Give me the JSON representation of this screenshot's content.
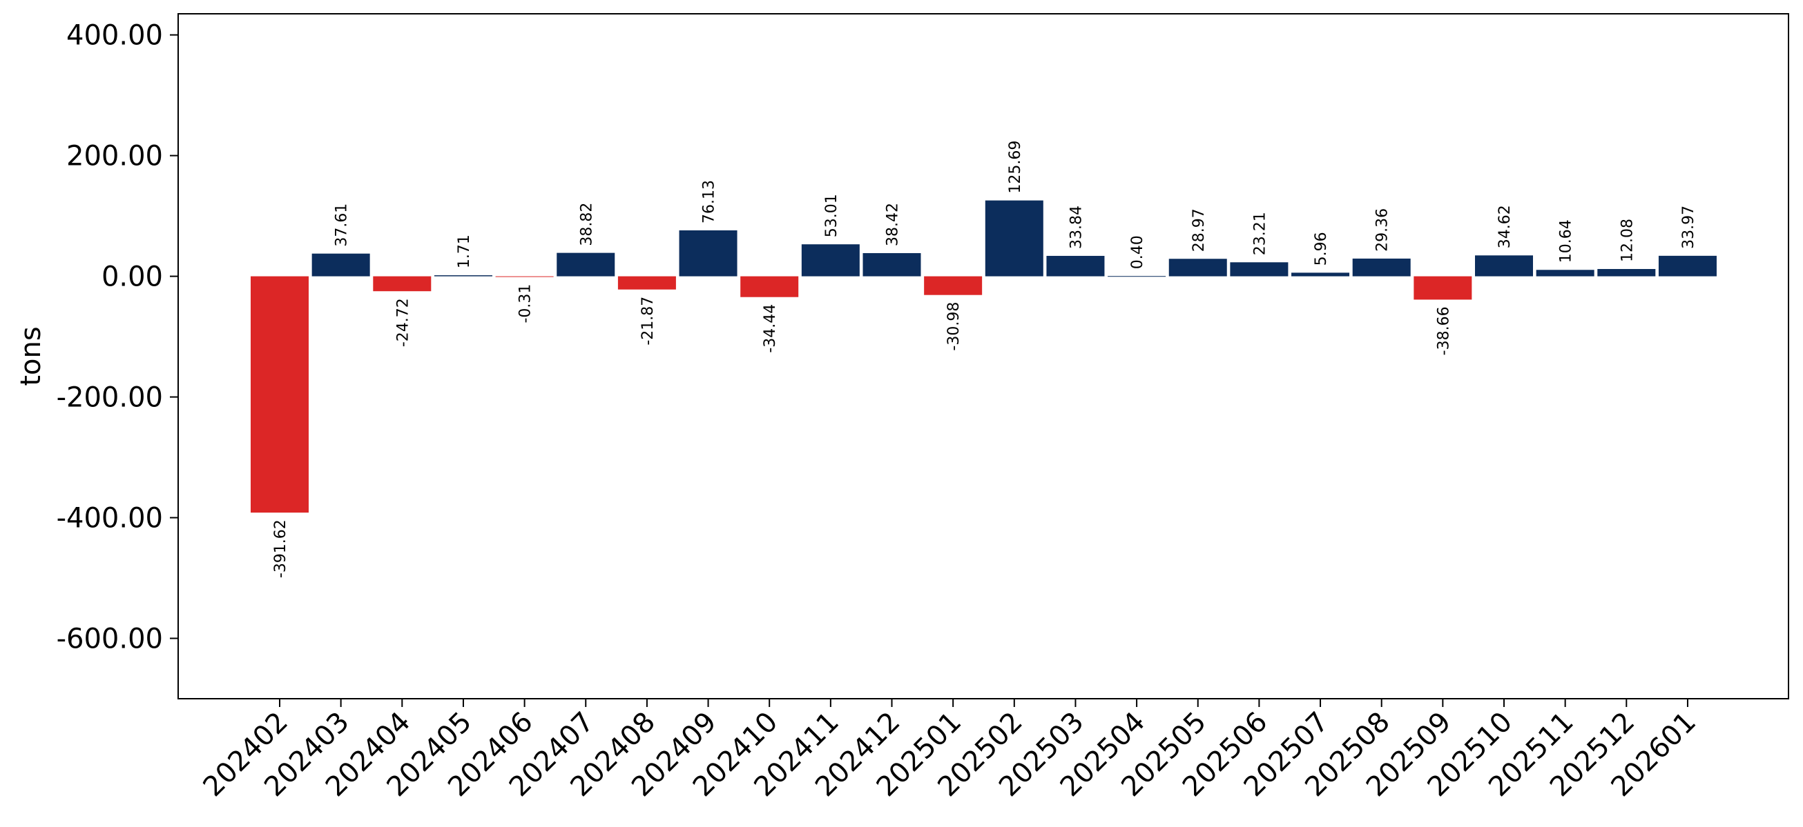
{
  "chart_data": {
    "type": "bar",
    "title": "",
    "xlabel": "",
    "ylabel": "tons",
    "ylim": [
      -700,
      435
    ],
    "yticks": [
      -600,
      -400,
      -200,
      0,
      200,
      400
    ],
    "ytick_labels": [
      "-600.00",
      "-400.00",
      "-200.00",
      "0.00",
      "200.00",
      "400.00"
    ],
    "grid": false,
    "legend": "none",
    "colors": {
      "positive": "#0c2d5c",
      "negative": "#dc2626"
    },
    "categories": [
      "202402",
      "202403",
      "202404",
      "202405",
      "202406",
      "202407",
      "202408",
      "202409",
      "202410",
      "202411",
      "202412",
      "202501",
      "202502",
      "202503",
      "202504",
      "202505",
      "202506",
      "202507",
      "202508",
      "202509",
      "202510",
      "202511",
      "202512",
      "202601"
    ],
    "values": [
      -391.62,
      37.61,
      -24.72,
      1.71,
      -0.31,
      38.82,
      -21.87,
      76.13,
      -34.44,
      53.01,
      38.42,
      -30.98,
      125.69,
      33.84,
      0.4,
      28.97,
      23.21,
      5.96,
      29.36,
      -38.66,
      34.62,
      10.64,
      12.08,
      33.97
    ],
    "value_labels": [
      "-391.62",
      "37.61",
      "-24.72",
      "1.71",
      "-0.31",
      "38.82",
      "-21.87",
      "76.13",
      "-34.44",
      "53.01",
      "38.42",
      "-30.98",
      "125.69",
      "33.84",
      "0.40",
      "28.97",
      "23.21",
      "5.96",
      "29.36",
      "-38.66",
      "34.62",
      "10.64",
      "12.08",
      "33.97"
    ]
  }
}
